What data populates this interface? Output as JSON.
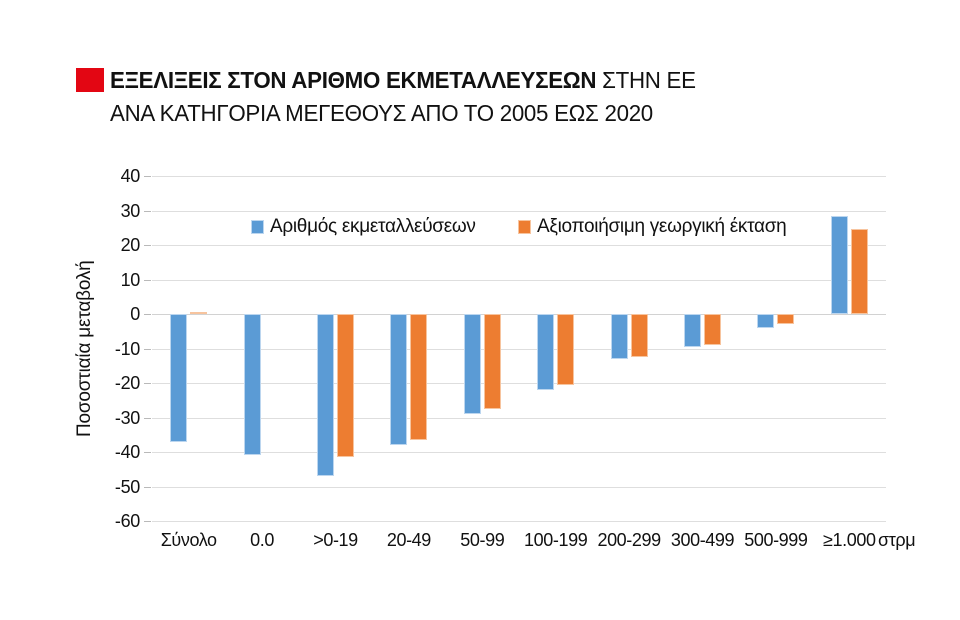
{
  "header": {
    "title_bold": "ΕΞΕΛΙΞΕΙΣ ΣΤΟΝ ΑΡΙΘΜΟ ΕΚΜΕΤΑΛΛΕΥΣΕΩΝ",
    "title_regular": " ΣΤΗΝ ΕΕ",
    "subtitle": "ΑΝΑ ΚΑΤΗΓΟΡΙΑ ΜΕΓΕΘΟΥΣ ΑΠΟ ΤΟ 2005 ΕΩΣ 2020",
    "accent_color": "#e30613"
  },
  "chart_data": {
    "type": "bar",
    "title": "ΕΞΕΛΙΞΕΙΣ ΣΤΟΝ ΑΡΙΘΜΟ ΕΚΜΕΤΑΛΛΕΥΣΕΩΝ ΣΤΗΝ ΕΕ ΑΝΑ ΚΑΤΗΓΟΡΙΑ ΜΕΓΕΘΟΥΣ ΑΠΟ ΤΟ 2005 ΕΩΣ 2020",
    "ylabel": "Ποσοστιαία μεταβολή",
    "xlabel": "",
    "x_unit": "στρμ",
    "categories": [
      "Σύνολο",
      "0.0",
      ">0-19",
      "20-49",
      "50-99",
      "100-199",
      "200-299",
      "300-499",
      "500-999",
      "≥1.000"
    ],
    "series": [
      {
        "name": "Αριθμός εκμεταλλεύσεων",
        "color": "#5b9bd5",
        "values": [
          -37,
          -41,
          -47,
          -38,
          -29,
          -22,
          -13,
          -9.5,
          -4,
          28.5
        ]
      },
      {
        "name": "Αξιοποιήσιμη γεωργική έκταση",
        "color": "#ed7d31",
        "values": [
          0.5,
          null,
          -41.5,
          -36.5,
          -27.5,
          -20.5,
          -12.5,
          -9,
          -3,
          24.5
        ]
      }
    ],
    "ylim": [
      -60,
      40
    ],
    "yticks": [
      40,
      30,
      20,
      10,
      0,
      -10,
      -20,
      -30,
      -40,
      -50,
      -60
    ],
    "grid": true,
    "legend_position": "top-inside"
  }
}
